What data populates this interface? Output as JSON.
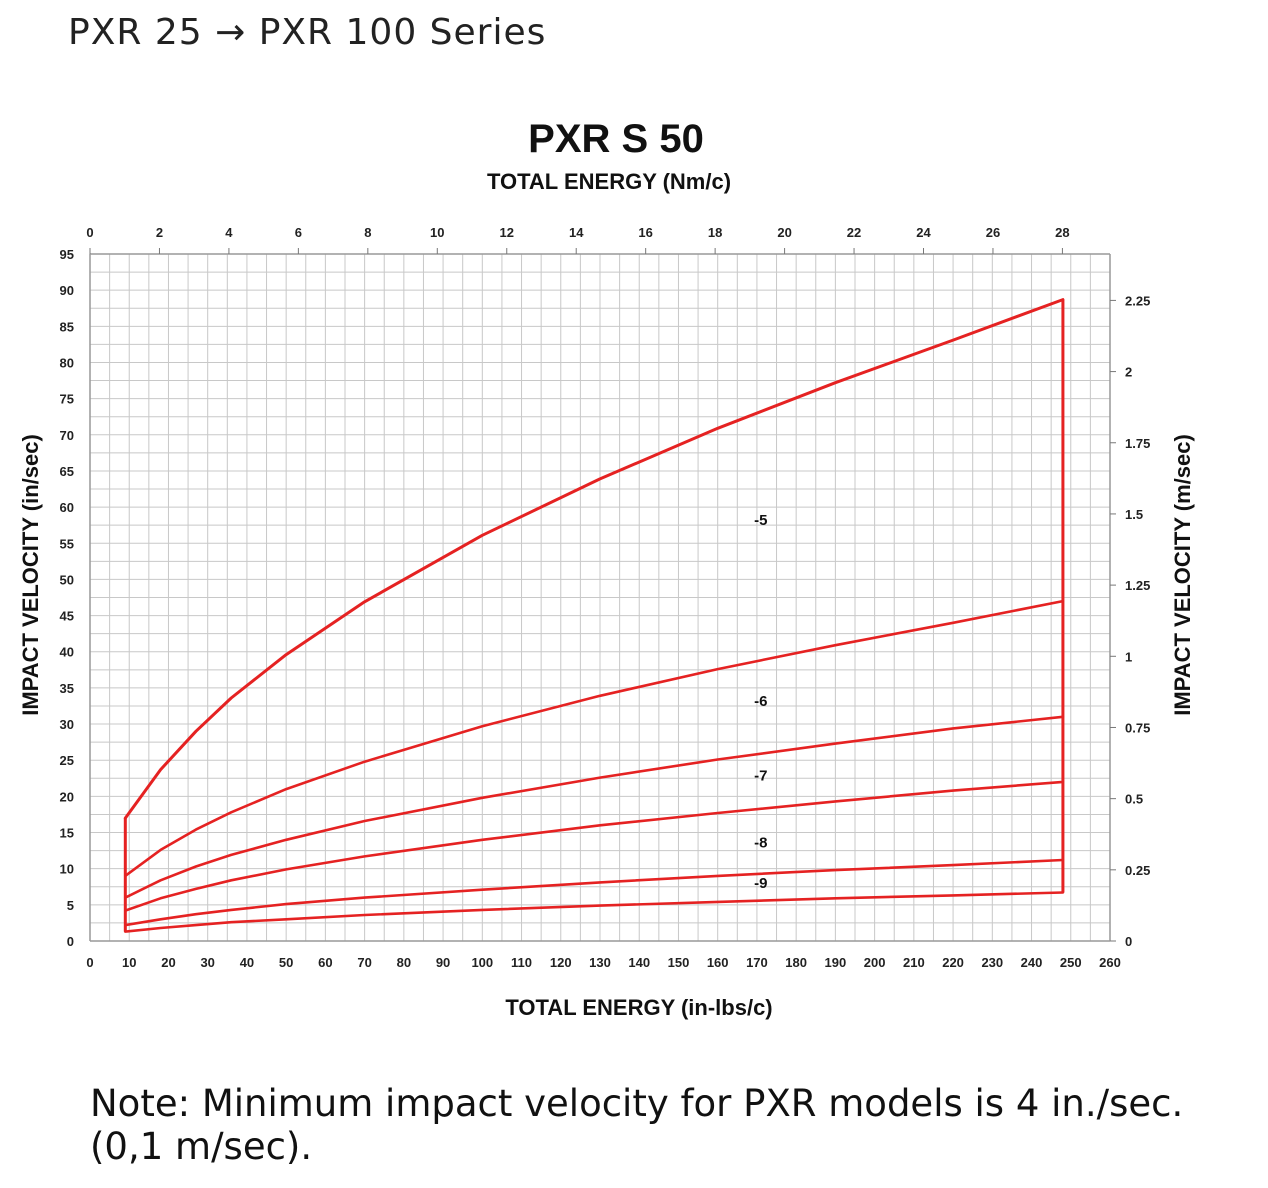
{
  "header": {
    "series_text": "PXR 25 → PXR 100 Series"
  },
  "note": {
    "text": "Note: Minimum impact velocity for PXR models is 4 in./sec. (0,1 m/sec)."
  },
  "chart_data": {
    "type": "line",
    "title": "PXR S 50",
    "top_axis_label": "TOTAL ENERGY (Nm/c)",
    "xlabel": "TOTAL ENERGY (in-lbs/c)",
    "ylabel": "IMPACT VELOCITY (in/sec)",
    "right_ylabel": "IMPACT VELOCITY (m/sec)",
    "xlim": [
      0,
      260
    ],
    "ylim": [
      0,
      95
    ],
    "top_xlim": [
      0,
      29.37
    ],
    "right_ylim": [
      0,
      2.413
    ],
    "x_ticks": [
      0,
      10,
      20,
      30,
      40,
      50,
      60,
      70,
      80,
      90,
      100,
      110,
      120,
      130,
      140,
      150,
      160,
      170,
      180,
      190,
      200,
      210,
      220,
      230,
      240,
      250,
      260
    ],
    "y_ticks": [
      0,
      5,
      10,
      15,
      20,
      25,
      30,
      35,
      40,
      45,
      50,
      55,
      60,
      65,
      70,
      75,
      80,
      85,
      90,
      95
    ],
    "top_x_ticks": [
      0,
      2,
      4,
      6,
      8,
      10,
      12,
      14,
      16,
      18,
      20,
      22,
      24,
      26,
      28
    ],
    "right_y_ticks": [
      "0",
      "0.25",
      "0.5",
      "0.75",
      "1",
      "1.25",
      "1.5",
      "1.75",
      "2",
      "2.25"
    ],
    "right_y_values": [
      0,
      0.25,
      0.5,
      0.75,
      1,
      1.25,
      1.5,
      1.75,
      2,
      2.25
    ],
    "grid": true,
    "line_color": "#e52222",
    "x": [
      9,
      18,
      27,
      36,
      50,
      70,
      100,
      130,
      160,
      190,
      220,
      248
    ],
    "series": [
      {
        "y": [
          17,
          23.7,
          29,
          33.6,
          39.6,
          46.9,
          56.1,
          63.9,
          70.9,
          77.2,
          83.1,
          88.7
        ]
      },
      {
        "y": [
          9,
          12.6,
          15.4,
          17.8,
          21,
          24.8,
          29.7,
          33.9,
          37.6,
          40.9,
          44,
          47
        ]
      },
      {
        "y": [
          6,
          8.4,
          10.3,
          11.9,
          14,
          16.6,
          19.8,
          22.6,
          25.1,
          27.3,
          29.4,
          31
        ]
      },
      {
        "y": [
          4.2,
          5.9,
          7.2,
          8.4,
          9.9,
          11.7,
          14,
          16,
          17.7,
          19.3,
          20.8,
          22
        ]
      },
      {
        "y": [
          2.2,
          3,
          3.7,
          4.3,
          5.1,
          6,
          7.1,
          8.1,
          9,
          9.8,
          10.5,
          11.2
        ]
      },
      {
        "y": [
          1.3,
          1.8,
          2.2,
          2.6,
          3,
          3.6,
          4.3,
          4.9,
          5.4,
          5.9,
          6.3,
          6.7
        ]
      }
    ],
    "curve_labels": [
      {
        "text": "-5",
        "x": 171,
        "y": 57.5
      },
      {
        "text": "-6",
        "x": 171,
        "y": 32.5
      },
      {
        "text": "-7",
        "x": 171,
        "y": 22.2
      },
      {
        "text": "-8",
        "x": 171,
        "y": 12.9
      },
      {
        "text": "-9",
        "x": 171,
        "y": 7.3
      }
    ],
    "boundary_x": [
      9,
      248
    ]
  }
}
